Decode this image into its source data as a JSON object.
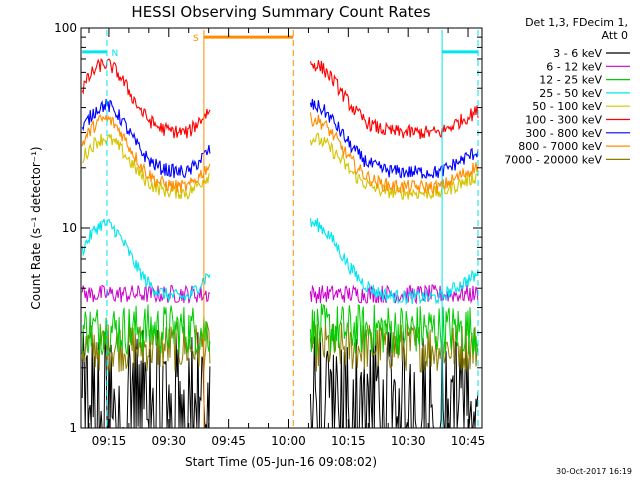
{
  "chart_data": {
    "type": "line",
    "title": "HESSI Observing Summary Count Rates",
    "xlabel": "Start Time (05-Jun-16 09:08:02)",
    "ylabel": "Count Rate (s⁻¹ detector⁻¹)",
    "x_tick_labels": [
      "09:15",
      "09:30",
      "09:45",
      "10:00",
      "10:15",
      "10:30",
      "10:45"
    ],
    "x_tick_minutes": [
      15,
      30,
      45,
      60,
      75,
      90,
      105
    ],
    "xlim_minutes": [
      8.0,
      108.5
    ],
    "y_scale": "log",
    "ylim": [
      1,
      100
    ],
    "y_tick_labels": [
      "1",
      "10",
      "100"
    ],
    "y_tick_values": [
      1,
      10,
      100
    ],
    "legend_header": [
      "Det 1,3, FDecim 1,",
      "Att 0"
    ],
    "legend_placement": "right, outside plot",
    "timestamp": "30-Oct-2017 16:19",
    "series": [
      {
        "name": "3 - 6 keV",
        "color": "#000000",
        "style": "noisy-floor"
      },
      {
        "name": "6 - 12 keV",
        "color": "#cc00cc",
        "level_range": [
          4.2,
          5.2
        ]
      },
      {
        "name": "12 - 25 keV",
        "color": "#00cc00",
        "level_range": [
          2.3,
          4.2
        ]
      },
      {
        "name": "25 - 50 keV",
        "color": "#00e5ee",
        "peak": 10.5,
        "base": 4.5
      },
      {
        "name": "50 - 100 keV",
        "color": "#d4c400",
        "peak": 28,
        "base": 15
      },
      {
        "name": "100 - 300 keV",
        "color": "#ff0000",
        "peak": 66,
        "base": 30
      },
      {
        "name": "300 - 800 keV",
        "color": "#0000ff",
        "peak": 41,
        "base": 19
      },
      {
        "name": "800 - 7000 keV",
        "color": "#ff8c00",
        "peak": 35,
        "base": 16
      },
      {
        "name": "7000 - 20000 keV",
        "color": "#8b7d00",
        "level_range": [
          1.9,
          3.4
        ]
      }
    ],
    "data_segments_minutes": [
      [
        8.3,
        40.5
      ],
      [
        65.5,
        107.5
      ]
    ],
    "annotations": [
      {
        "label": "N",
        "color": "#00e5ee",
        "bar_minutes": [
          8.3,
          14.5
        ],
        "label_minute": 16.5,
        "level": 76
      },
      {
        "label": "",
        "color": "#00e5ee",
        "bar_minutes": [
          98.5,
          107.5
        ],
        "level": 76
      },
      {
        "label": "S",
        "color": "#ff8c00",
        "bar_minutes": [
          38.8,
          61.2
        ],
        "label_minute": 36.8,
        "level": 90
      }
    ],
    "vertical_markers": [
      {
        "minute": 14.5,
        "color": "#00e5ee",
        "style": "dashed"
      },
      {
        "minute": 38.8,
        "color": "#ff8c00",
        "style": "solid"
      },
      {
        "minute": 61.2,
        "color": "#ff8c00",
        "style": "dashed"
      },
      {
        "minute": 98.5,
        "color": "#00e5ee",
        "style": "solid"
      },
      {
        "minute": 107.5,
        "color": "#00e5ee",
        "style": "dashed"
      }
    ],
    "grid": false
  }
}
